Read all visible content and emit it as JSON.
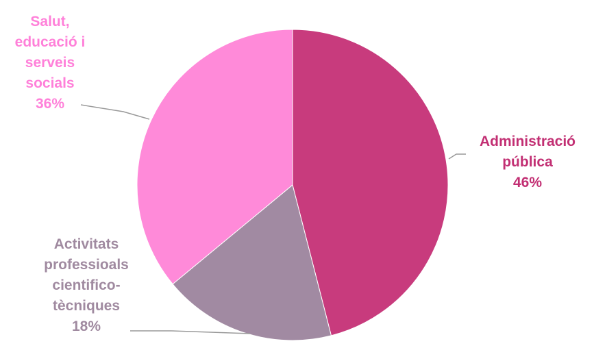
{
  "chart_data": {
    "type": "pie",
    "title": "",
    "categories": [
      "Administració pública",
      "Activitats professioals cientifico-tècniques",
      "Salut, educació i serveis socials"
    ],
    "values": [
      46,
      18,
      36
    ],
    "colors": [
      "#c83b7d",
      "#a18aa2",
      "#ff8ad9"
    ],
    "label_colors": [
      "#c22f73",
      "#a08aa0",
      "#ff80d9"
    ],
    "leader_color": "#999999",
    "legend": "none",
    "labels": [
      {
        "lines": [
          "Administració",
          "pública",
          "46%"
        ]
      },
      {
        "lines": [
          "Activitats",
          "professioals",
          "cientifico-",
          "tècniques",
          "18%"
        ]
      },
      {
        "lines": [
          "Salut,",
          "educació i",
          "serveis",
          "socials",
          "36%"
        ]
      }
    ]
  }
}
